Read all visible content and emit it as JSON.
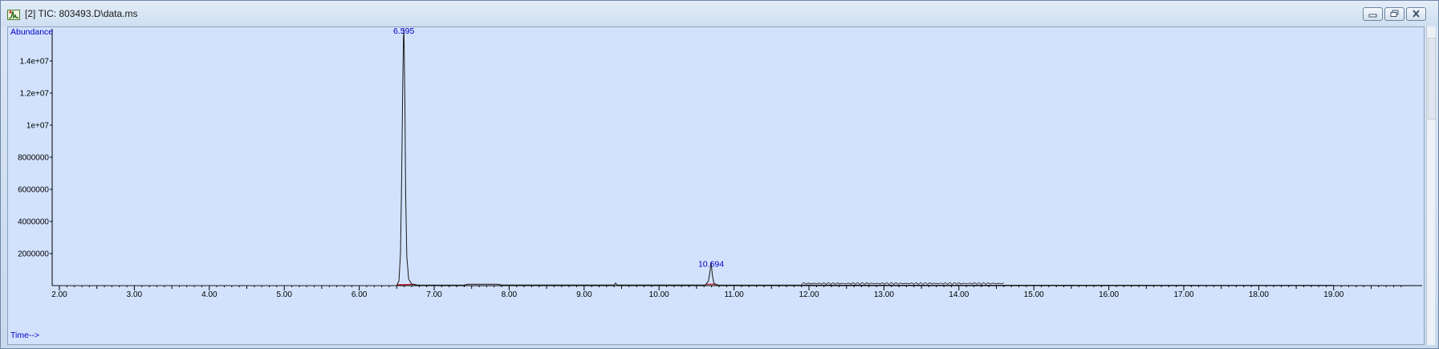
{
  "window": {
    "title": "[2] TIC: 803493.D\\data.ms",
    "icon": "chromatogram-app-icon"
  },
  "controls": {
    "minimize_icon": "minimize-icon",
    "restore_icon": "restore-icon",
    "close_icon": "close-icon"
  },
  "chart_data": {
    "type": "line",
    "ylabel": "Abundance",
    "xlabel": "Time-->",
    "xlim": [
      1.95,
      20.0
    ],
    "ylim": [
      0,
      16200000
    ],
    "x_ticks": [
      "2.00",
      "3.00",
      "4.00",
      "5.00",
      "6.00",
      "7.00",
      "8.00",
      "9.00",
      "10.00",
      "11.00",
      "12.00",
      "13.00",
      "14.00",
      "15.00",
      "16.00",
      "17.00",
      "18.00",
      "19.00"
    ],
    "y_ticks": [
      "2000000",
      "4000000",
      "6000000",
      "8000000",
      "1e+07",
      "1.2e+07",
      "1.4e+07"
    ],
    "colors": {
      "trace": "#1a1a1a",
      "labels": "#0000c8",
      "baseline": "#c8141e",
      "plot_bg": "#d2e2fd"
    },
    "series": [
      {
        "x": [
          6.5,
          6.53,
          6.55,
          6.565,
          6.58,
          6.59,
          6.595,
          6.6,
          6.61,
          6.62,
          6.635,
          6.66,
          6.7,
          6.75,
          6.8,
          7.4,
          7.45,
          7.85,
          7.9,
          9.4,
          9.42,
          9.44,
          10.62,
          10.66,
          10.68,
          10.694,
          10.71,
          10.73,
          10.78,
          19.0
        ],
        "y": [
          0,
          300000,
          2000000,
          6500000,
          12500000,
          15400000,
          16000000,
          15000000,
          11000000,
          5500000,
          1800000,
          400000,
          100000,
          50000,
          30000,
          40000,
          90000,
          90000,
          40000,
          40000,
          160000,
          40000,
          40000,
          300000,
          900000,
          1480000,
          700000,
          150000,
          30000,
          20000
        ]
      }
    ],
    "peaks": [
      {
        "label": "6.595",
        "x": 6.595,
        "y": 16000000
      },
      {
        "label": "10.694",
        "x": 10.694,
        "y": 1480000
      }
    ],
    "baselines": [
      {
        "x": [
          6.5,
          6.75
        ],
        "y": [
          0,
          30000
        ]
      },
      {
        "x": [
          10.62,
          10.78
        ],
        "y": [
          40000,
          30000
        ]
      }
    ]
  }
}
